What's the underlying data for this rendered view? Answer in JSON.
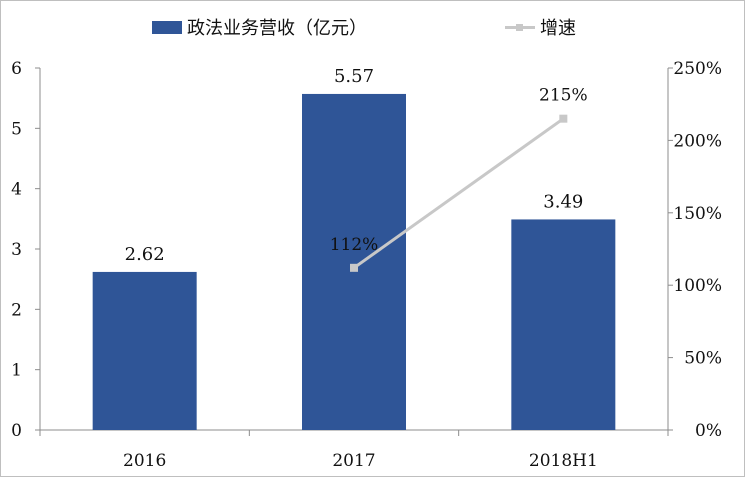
{
  "chart_data": {
    "type": "bar",
    "categories": [
      "2016",
      "2017",
      "2018H1"
    ],
    "series": [
      {
        "name": "政法业务营收（亿元）",
        "chart_type": "bar",
        "axis": "left",
        "values": [
          2.62,
          5.57,
          3.49
        ],
        "labels": [
          "2.62",
          "5.57",
          "3.49"
        ],
        "color": "#2f5597"
      },
      {
        "name": "增速",
        "chart_type": "line",
        "axis": "right",
        "values": [
          null,
          112,
          215
        ],
        "labels": [
          "",
          "112%",
          "215%"
        ],
        "color": "#c8c8c8"
      }
    ],
    "y_left": {
      "lim": [
        0,
        6
      ],
      "ticks": [
        "0",
        "1",
        "2",
        "3",
        "4",
        "5",
        "6"
      ]
    },
    "y_right": {
      "lim": [
        0,
        250
      ],
      "ticks": [
        "0%",
        "50%",
        "100%",
        "150%",
        "200%",
        "250%"
      ]
    },
    "legend_position": "top",
    "grid": false
  }
}
